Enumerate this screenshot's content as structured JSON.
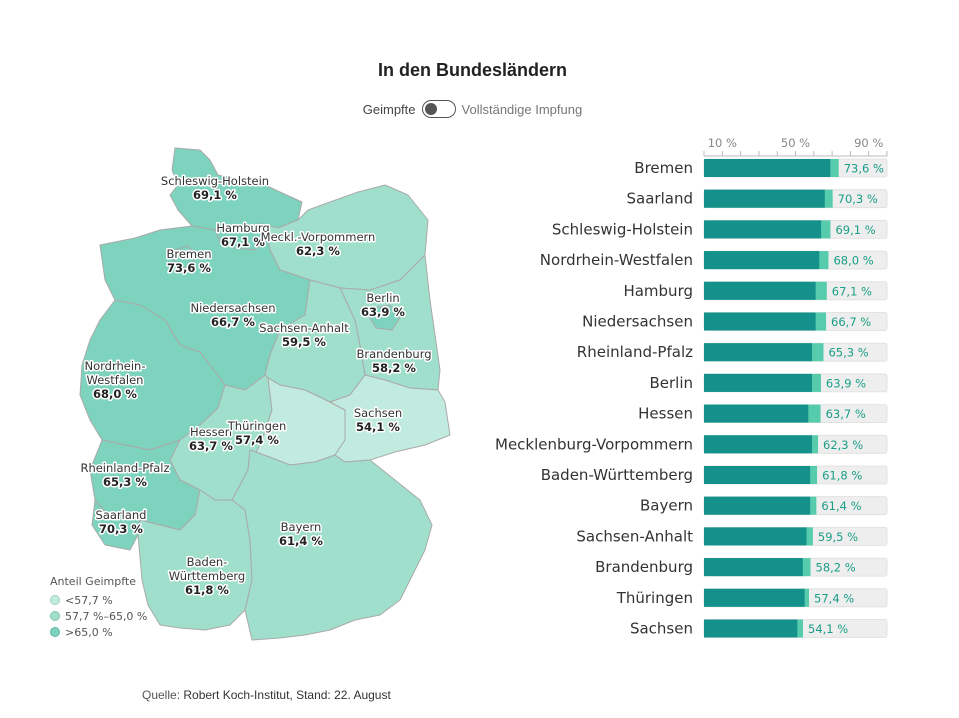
{
  "title": "In den Bundesländern",
  "toggle": {
    "left_label": "Geimpfte",
    "right_label": "Vollständige Impfung",
    "state": "left"
  },
  "legend": {
    "title": "Anteil Geimpfte",
    "items": [
      {
        "label": "<57,7 %",
        "color": "#c2ebdf"
      },
      {
        "label": "57,7 %–65,0 %",
        "color": "#9fdfcb"
      },
      {
        "label": ">65,0 %",
        "color": "#7dd3bd"
      }
    ]
  },
  "source": {
    "prefix": "Quelle: ",
    "text": "Robert Koch-Institut, Stand: 22. August"
  },
  "colors": {
    "bar_dark": "#14918a",
    "bar_light": "#56ccac",
    "bar_bg": "#eeeeee",
    "value_text": "#1a9e86"
  },
  "map_labels": [
    {
      "name": "Schleswig-Holstein",
      "value": "69,1 %"
    },
    {
      "name": "Hamburg",
      "value": "67,1 %"
    },
    {
      "name": "Bremen",
      "value": "73,6 %"
    },
    {
      "name": "Meckl.-Vorpommern",
      "value": "62,3 %"
    },
    {
      "name": "Berlin",
      "value": "63,9 %"
    },
    {
      "name": "Niedersachsen",
      "value": "66,7 %"
    },
    {
      "name": "Sachsen-Anhalt",
      "value": "59,5 %"
    },
    {
      "name": "Brandenburg",
      "value": "58,2 %"
    },
    {
      "name": "Nordrhein-\nWestfalen",
      "value": "68,0 %"
    },
    {
      "name": "Sachsen",
      "value": "54,1 %"
    },
    {
      "name": "Hessen",
      "value": "63,7 %"
    },
    {
      "name": "Thüringen",
      "value": "57,4 %"
    },
    {
      "name": "Rheinland-Pfalz",
      "value": "65,3 %"
    },
    {
      "name": "Saarland",
      "value": "70,3 %"
    },
    {
      "name": "Bayern",
      "value": "61,4 %"
    },
    {
      "name": "Baden-\nWürttemberg",
      "value": "61,8 %"
    }
  ],
  "chart_data": {
    "type": "bar",
    "orientation": "horizontal",
    "title": "In den Bundesländern",
    "x_ticks": [
      "10 %",
      "50 %",
      "90 %"
    ],
    "xlim": [
      0,
      100
    ],
    "categories": [
      "Bremen",
      "Saarland",
      "Schleswig-Holstein",
      "Nordrhein-Westfalen",
      "Hamburg",
      "Niedersachsen",
      "Rheinland-Pfalz",
      "Berlin",
      "Hessen",
      "Mecklenburg-Vorpommern",
      "Baden-Württemberg",
      "Bayern",
      "Sachsen-Anhalt",
      "Brandenburg",
      "Thüringen",
      "Sachsen"
    ],
    "values": [
      73.6,
      70.3,
      69.1,
      68.0,
      67.1,
      66.7,
      65.3,
      63.9,
      63.7,
      62.3,
      61.8,
      61.4,
      59.5,
      58.2,
      57.4,
      54.1
    ],
    "fully_vaccinated_values": [
      69,
      66,
      64,
      63,
      61,
      61,
      59,
      59,
      57,
      59,
      58,
      58,
      56,
      54,
      55,
      51
    ],
    "value_labels": [
      "73,6 %",
      "70,3 %",
      "69,1 %",
      "68,0 %",
      "67,1 %",
      "66,7 %",
      "65,3 %",
      "63,9 %",
      "63,7 %",
      "62,3 %",
      "61,8 %",
      "61,4 %",
      "59,5 %",
      "58,2 %",
      "57,4 %",
      "54,1 %"
    ]
  }
}
